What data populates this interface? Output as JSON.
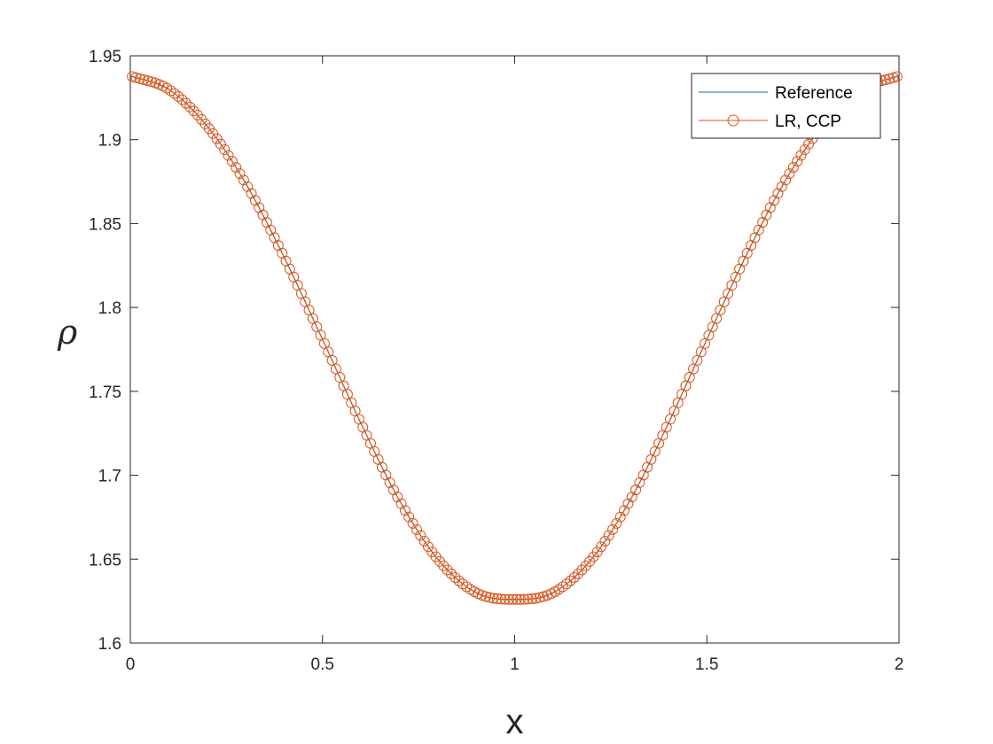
{
  "chart_data": {
    "type": "line",
    "title": "",
    "xlabel": "x",
    "ylabel": "ρ",
    "xlim": [
      0,
      2
    ],
    "ylim": [
      1.6,
      1.95
    ],
    "xticks": [
      0,
      0.5,
      1,
      1.5,
      2
    ],
    "xtick_labels": [
      "0",
      "0.5",
      "1",
      "1.5",
      "2"
    ],
    "yticks": [
      1.6,
      1.65,
      1.7,
      1.75,
      1.8,
      1.85,
      1.9,
      1.95
    ],
    "ytick_labels": [
      "1.6",
      "1.65",
      "1.7",
      "1.75",
      "1.8",
      "1.85",
      "1.9",
      "1.95"
    ],
    "grid": false,
    "legend": {
      "placement": "top-right",
      "entries": [
        "Reference",
        "LR, CCP"
      ]
    },
    "series": [
      {
        "name": "Reference",
        "style": "line",
        "color": "#0072BD",
        "x": [
          0,
          0.1,
          0.2,
          0.3,
          0.4,
          0.5,
          0.6,
          0.7,
          0.8,
          0.9,
          1.0,
          1.1,
          1.2,
          1.3,
          1.4,
          1.5,
          1.6,
          1.7,
          1.8,
          1.9,
          2.0
        ],
        "y": [
          1.938,
          1.93,
          1.908,
          1.874,
          1.83,
          1.781,
          1.731,
          1.685,
          1.65,
          1.63,
          1.626,
          1.63,
          1.65,
          1.685,
          1.731,
          1.781,
          1.83,
          1.874,
          1.908,
          1.93,
          1.938
        ]
      },
      {
        "name": "LR, CCP",
        "style": "line-circle-markers",
        "color": "#D95319",
        "x": [
          0,
          0.1,
          0.2,
          0.3,
          0.4,
          0.5,
          0.6,
          0.7,
          0.8,
          0.9,
          1.0,
          1.1,
          1.2,
          1.3,
          1.4,
          1.5,
          1.6,
          1.7,
          1.8,
          1.9,
          2.0
        ],
        "y": [
          1.938,
          1.93,
          1.908,
          1.874,
          1.83,
          1.781,
          1.731,
          1.685,
          1.65,
          1.63,
          1.626,
          1.63,
          1.65,
          1.685,
          1.731,
          1.781,
          1.83,
          1.874,
          1.908,
          1.93,
          1.938
        ],
        "marker_count": 200
      }
    ]
  }
}
